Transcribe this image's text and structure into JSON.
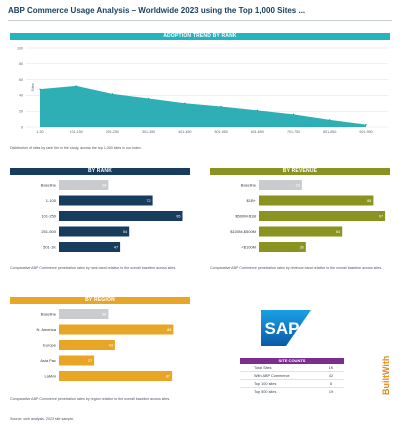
{
  "header": {
    "title": "ABP Commerce Usage Analysis – Worldwide 2023 using the Top 1,000 Sites ..."
  },
  "trend": {
    "section_label": "ADOPTION TREND BY RANK",
    "note": "Distribution of sites by rank tier in the study, across the top 1,000 sites in our index.",
    "ylabel": "Sites",
    "color": "#17a6ae",
    "chart_data": {
      "type": "area",
      "x": [
        "1-50",
        "101-150",
        "201-250",
        "301-350",
        "401-450",
        "501-550",
        "601-650",
        "701-750",
        "801-850",
        "901-950"
      ],
      "y": [
        48,
        52,
        42,
        36,
        30,
        26,
        21,
        16,
        9,
        3
      ],
      "yticks": [
        "100",
        "80",
        "60",
        "40",
        "20",
        "0"
      ],
      "ylim": [
        0,
        100
      ],
      "grid": true
    }
  },
  "panels": [
    {
      "id": "p1",
      "section_label": "BY RANK",
      "color": "#173c5e",
      "note": "Comparative ABP Commerce penetration rates by rank band relative to the overall baseline across sites.",
      "chart_data": {
        "type": "bar",
        "categories": [
          "Baseline",
          "1-100",
          "101-250",
          "251-500",
          "501-1K"
        ],
        "values": [
          38,
          72,
          95,
          54,
          47
        ],
        "value_labels": [
          "38",
          "72",
          "95",
          "54",
          "47"
        ],
        "xlim": [
          0,
          100
        ]
      }
    },
    {
      "id": "p2",
      "section_label": "BY REVENUE",
      "color": "#8a9220",
      "note": "Comparative ABP Commerce penetration rates by revenue band relative to the overall baseline across sites.",
      "chart_data": {
        "type": "bar",
        "categories": [
          "Baseline",
          "$1B+",
          "$500M-$1B",
          "$100M-$500M",
          "<$100M"
        ],
        "values": [
          33,
          88,
          97,
          64,
          36
        ],
        "value_labels": [
          "33",
          "88",
          "97",
          "64",
          "36"
        ],
        "xlim": [
          0,
          100
        ]
      }
    },
    {
      "id": "p3",
      "section_label": "BY REGION",
      "color": "#e9a626",
      "note": "Comparative ABP Commerce penetration rates by region relative to the overall baseline across sites.",
      "chart_data": {
        "type": "bar",
        "categories": [
          "Baseline",
          "N. America",
          "Europe",
          "Asia Pac",
          "LatAm"
        ],
        "values": [
          38,
          88,
          43,
          27,
          87
        ],
        "value_labels": [
          "38",
          "88",
          "43",
          "27",
          "87"
        ],
        "xlim": [
          0,
          100
        ]
      }
    }
  ],
  "legend": {
    "heading": "SITE COUNTS",
    "rows": [
      {
        "label": "Total Sites",
        "value": "1K"
      },
      {
        "label": "With ABP Commerce",
        "value": "42"
      },
      {
        "label": "Top 100 sites",
        "value": "6"
      },
      {
        "label": "Top 500 sites",
        "value": "19"
      }
    ]
  },
  "logo": {
    "text": "SAP",
    "color_top": "#1aa0e6",
    "color_bottom": "#0a5aa8"
  },
  "brand": {
    "text": "BuiltWith"
  },
  "source": {
    "text": "Source: web analysis, 2023 site sample."
  }
}
